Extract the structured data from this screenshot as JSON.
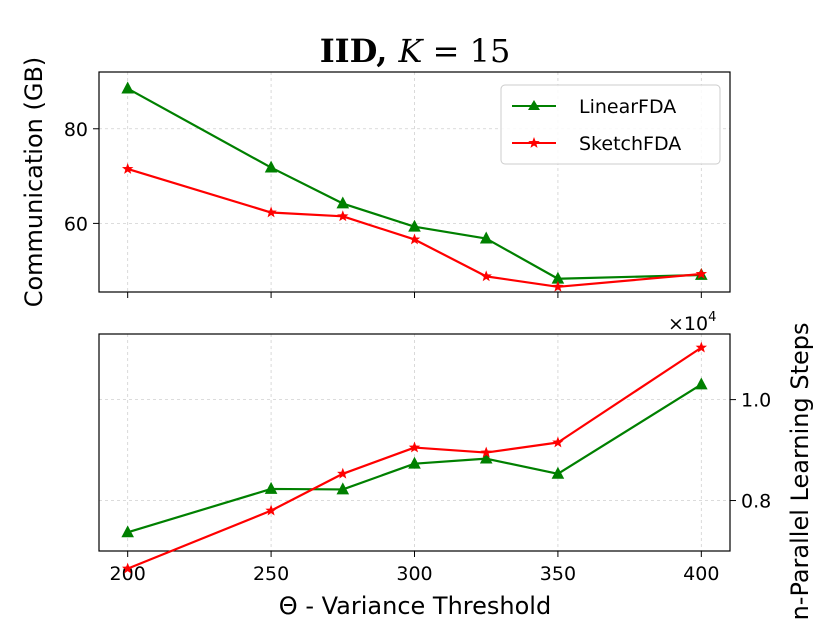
{
  "title": {
    "prefix": "IID, ",
    "var": "K",
    "rest": " = 15"
  },
  "chart_data": [
    {
      "type": "line",
      "panel": "top",
      "x": [
        200,
        250,
        275,
        300,
        325,
        350,
        400
      ],
      "xlim": [
        190,
        410
      ],
      "ylim": [
        45.5,
        92
      ],
      "yticks": [
        60,
        80
      ],
      "ylabel": "Communication (GB)",
      "legend_position": "top-right",
      "series": [
        {
          "name": "LinearFDA",
          "color": "#008000",
          "marker": "triangle",
          "values": [
            88.5,
            71.8,
            64.2,
            59.3,
            56.8,
            48.3,
            49.1
          ]
        },
        {
          "name": "SketchFDA",
          "color": "#ff0000",
          "marker": "star",
          "values": [
            71.5,
            62.3,
            61.5,
            56.6,
            48.8,
            46.6,
            49.3
          ]
        }
      ]
    },
    {
      "type": "line",
      "panel": "bottom",
      "x": [
        200,
        250,
        275,
        300,
        325,
        350,
        400
      ],
      "xlim": [
        190,
        410
      ],
      "ylim": [
        0.7,
        1.13
      ],
      "yticks": [
        0.8,
        1.0
      ],
      "ytick_labels": [
        "0.8",
        "1.0"
      ],
      "xticks": [
        200,
        250,
        300,
        350,
        400
      ],
      "xlabel": "Θ - Variance Threshold",
      "ylabel": "In-Parallel Learning Steps",
      "offset_base": "×10",
      "offset_exp": "4",
      "series": [
        {
          "name": "LinearFDA",
          "color": "#008000",
          "marker": "triangle",
          "values": [
            0.737,
            0.823,
            0.822,
            0.873,
            0.883,
            0.853,
            1.03
          ]
        },
        {
          "name": "SketchFDA",
          "color": "#ff0000",
          "marker": "star",
          "values": [
            0.665,
            0.78,
            0.853,
            0.905,
            0.895,
            0.915,
            1.103
          ]
        }
      ]
    }
  ]
}
